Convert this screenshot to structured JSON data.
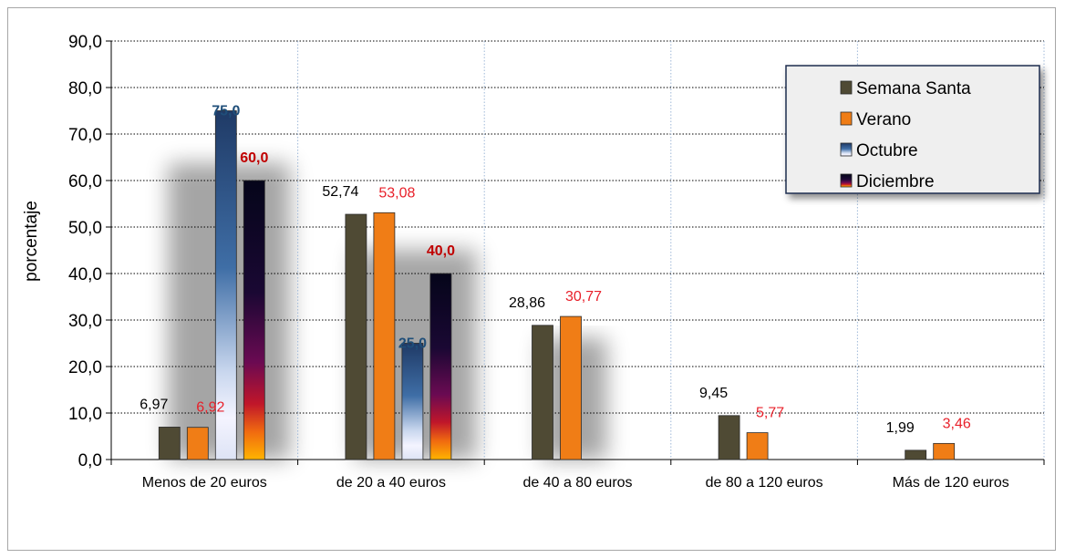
{
  "chart_data": {
    "type": "bar",
    "ylabel": "porcentaje",
    "ylim": [
      0,
      90
    ],
    "yticks": [
      "0,0",
      "10,0",
      "20,0",
      "30,0",
      "40,0",
      "50,0",
      "60,0",
      "70,0",
      "80,0",
      "90,0"
    ],
    "grid": true,
    "legend_position": "top-right",
    "categories": [
      "Menos de 20 euros",
      "de 20 a 40 euros",
      "de 40 a 80 euros",
      "de 80 a 120 euros",
      "Más de 120 euros"
    ],
    "series": [
      {
        "name": "Semana Santa",
        "color": "#4f4a34",
        "label_color": "#000000",
        "values": [
          6.97,
          52.74,
          28.86,
          9.45,
          1.99
        ],
        "labels": [
          "6,97",
          "52,74",
          "28,86",
          "9,45",
          "1,99"
        ]
      },
      {
        "name": "Verano",
        "color": "#f07d16",
        "label_color": "#e8202a",
        "values": [
          6.92,
          53.08,
          30.77,
          5.77,
          3.46
        ],
        "labels": [
          "6,92",
          "53,08",
          "30,77",
          "5,77",
          "3,46"
        ]
      },
      {
        "name": "Octubre",
        "color": "#1f4e79",
        "label_color": "#1f4e79",
        "values": [
          75.0,
          25.0,
          null,
          null,
          null
        ],
        "labels": [
          "75,0",
          "25,0",
          null,
          null,
          null
        ]
      },
      {
        "name": "Diciembre",
        "color": "#1a0a2e",
        "label_color": "#c00000",
        "values": [
          60.0,
          40.0,
          null,
          null,
          null
        ],
        "labels": [
          "60,0",
          "40,0",
          null,
          null,
          null
        ]
      }
    ]
  }
}
